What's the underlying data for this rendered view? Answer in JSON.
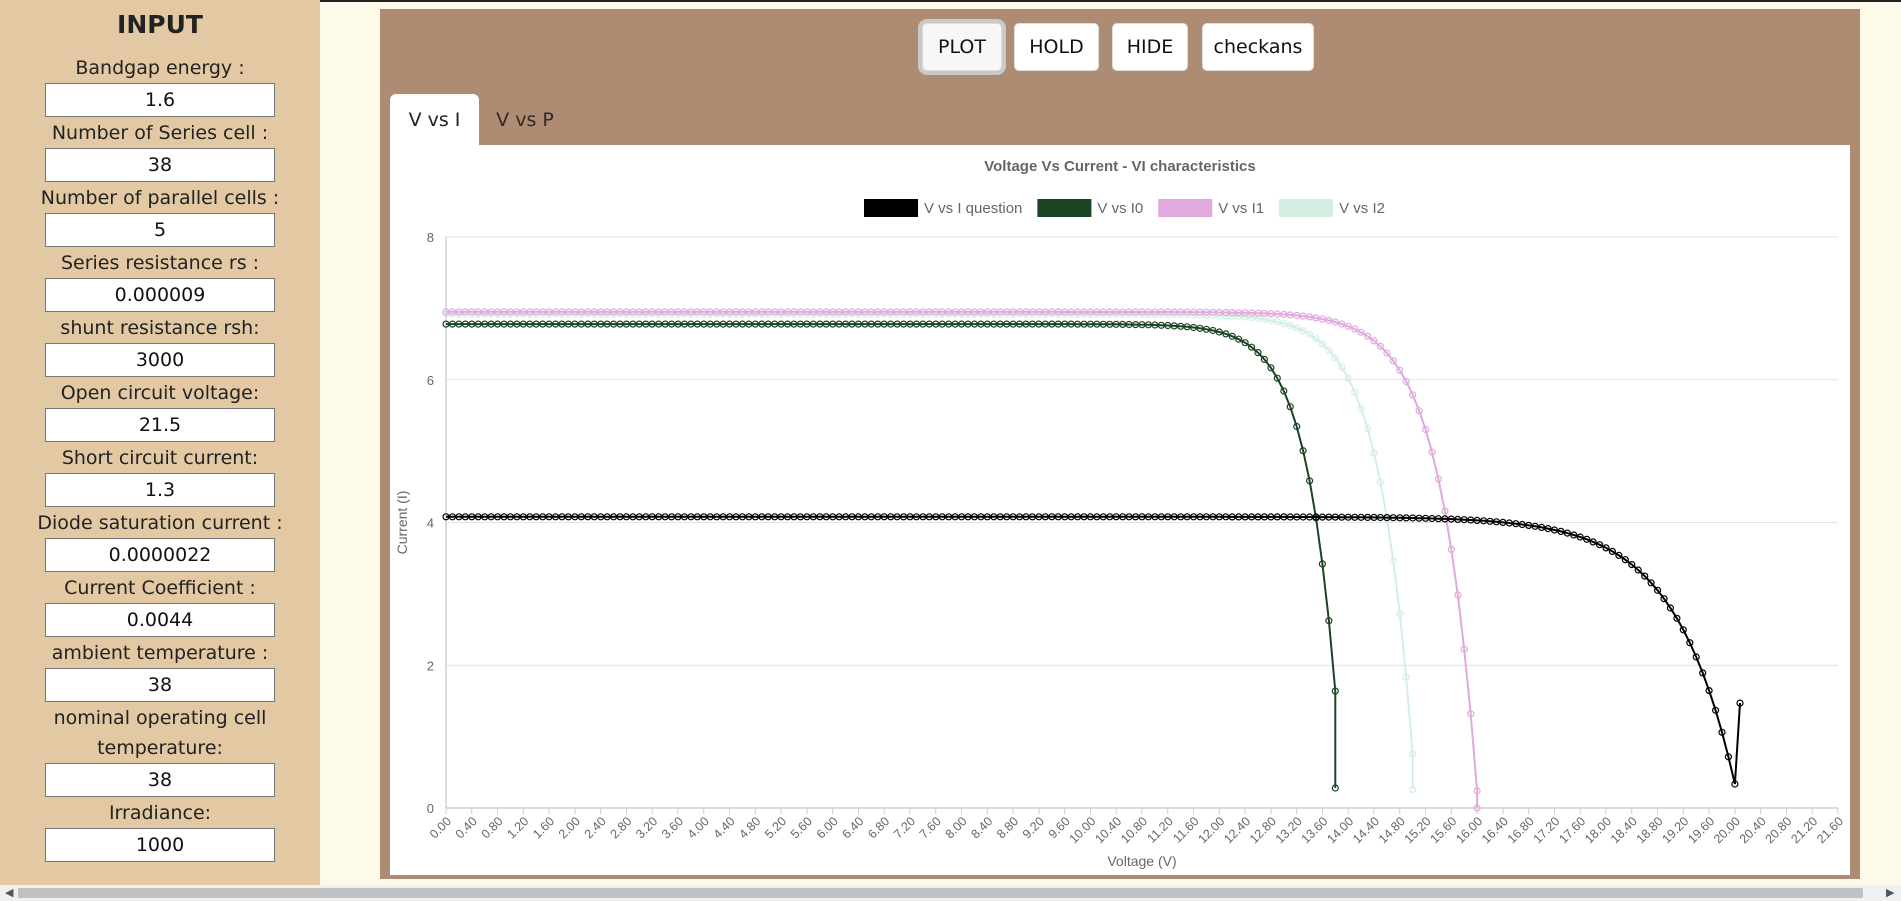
{
  "sidebar": {
    "title": "INPUT",
    "fields": [
      {
        "label": "Bandgap energy :",
        "value": "1.6"
      },
      {
        "label": "Number of Series cell :",
        "value": "38"
      },
      {
        "label": "Number of parallel cells :",
        "value": "5"
      },
      {
        "label": "Series resistance rs :",
        "value": "0.000009"
      },
      {
        "label": "shunt resistance rsh:",
        "value": "3000"
      },
      {
        "label": "Open circuit voltage:",
        "value": "21.5"
      },
      {
        "label": "Short circuit current:",
        "value": "1.3"
      },
      {
        "label": "Diode saturation current :",
        "value": "0.0000022"
      },
      {
        "label": "Current Coefficient :",
        "value": "0.0044"
      },
      {
        "label": "ambient temperature :",
        "value": "38"
      },
      {
        "label_line1": "nominal operating cell",
        "label_line2": "temperature:",
        "value": "38"
      },
      {
        "label": "Irradiance:",
        "value": "1000"
      }
    ]
  },
  "toolbar": {
    "plot_label": "PLOT",
    "hold_label": "HOLD",
    "hide_label": "HIDE",
    "checkans_label": "checkans"
  },
  "tabs": [
    {
      "label": "V vs I",
      "active": true
    },
    {
      "label": "V vs P",
      "active": false
    }
  ],
  "colors": {
    "sidebar_bg": "#e3c9a3",
    "main_bg": "#ae8b73",
    "page_bg": "#fdfaea"
  },
  "chart_data": {
    "type": "line",
    "title": "Voltage Vs Current - VI characteristics",
    "xlabel": "Voltage (V)",
    "ylabel": "Current (I)",
    "xlim": [
      0,
      21.6
    ],
    "ylim": [
      0,
      8
    ],
    "yticks": [
      "0",
      "2",
      "4",
      "6",
      "8"
    ],
    "xtick_step": 0.4,
    "grid": true,
    "legend_position": "top",
    "series": [
      {
        "name": "V vs I question",
        "color": "#000000",
        "isc": 4.08,
        "voc": 20.08,
        "m": 0.93,
        "v_end": 20.08,
        "i_end": 1.47
      },
      {
        "name": "V vs I0",
        "color": "#1b4424",
        "isc": 6.78,
        "voc": 13.93,
        "m": 0.47,
        "v_end": 13.8,
        "i_end": 0.28
      },
      {
        "name": "V vs I1",
        "color": "#e1a9de",
        "isc": 6.95,
        "voc": 16.02,
        "m": 0.57,
        "v_end": 16.0,
        "i_end": 0.0
      },
      {
        "name": "V vs I2",
        "color": "#d2efe2",
        "isc": 6.92,
        "voc": 15.06,
        "m": 0.52,
        "v_end": 15.0,
        "i_end": 0.26
      }
    ]
  }
}
